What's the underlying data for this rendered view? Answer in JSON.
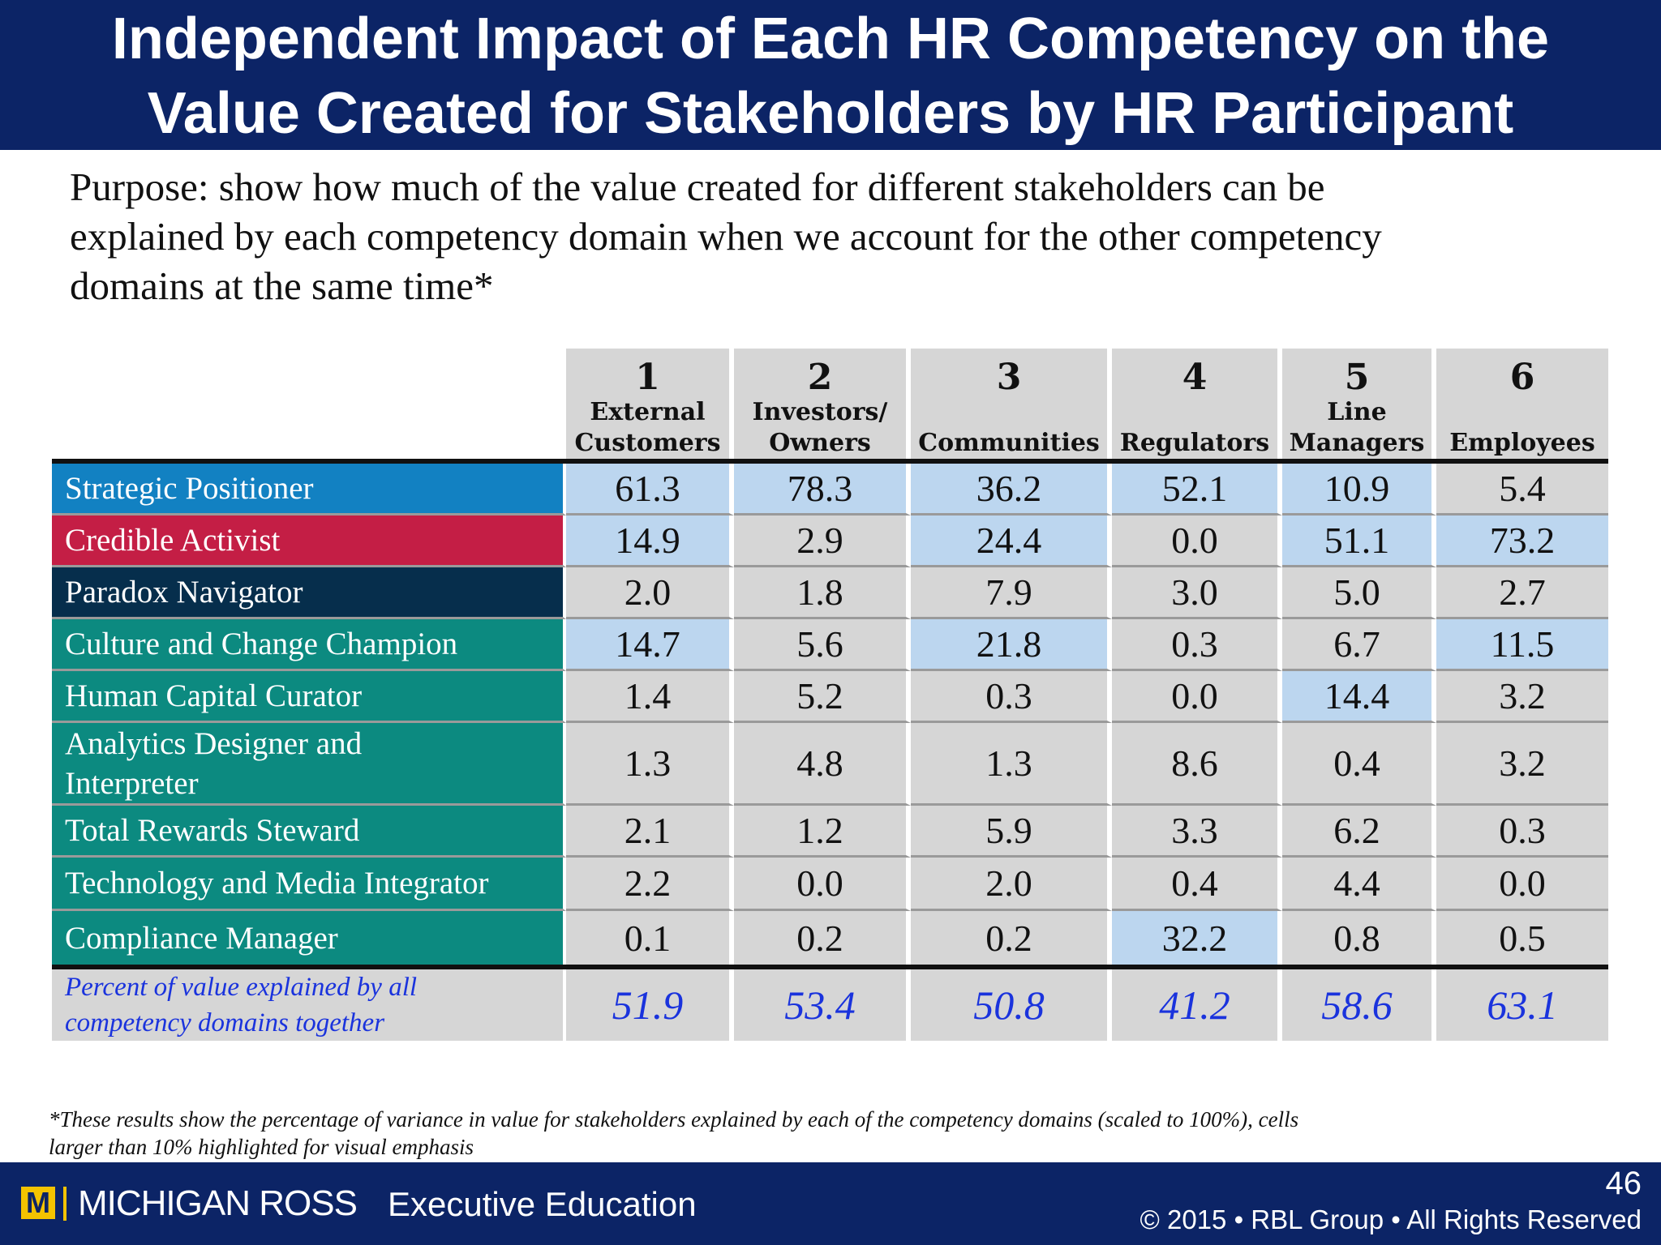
{
  "title": {
    "line1": "Independent Impact of Each HR Competency on the",
    "line2": "Value Created for Stakeholders by HR Participant"
  },
  "purpose": {
    "line1": "Purpose: show how much of the value created for different stakeholders can be",
    "line2": "explained by each competency domain when we account for the other competency",
    "line3": "domains at the same time*"
  },
  "table": {
    "columns": [
      {
        "num": "1",
        "label1": "External",
        "label2": "Customers"
      },
      {
        "num": "2",
        "label1": "Investors/",
        "label2": "Owners"
      },
      {
        "num": "3",
        "label1": "",
        "label2": "Communities"
      },
      {
        "num": "4",
        "label1": "",
        "label2": "Regulators"
      },
      {
        "num": "5",
        "label1": "Line",
        "label2": "Managers"
      },
      {
        "num": "6",
        "label1": "",
        "label2": "Employees"
      }
    ],
    "rows": [
      {
        "label": "Strategic Positioner",
        "values": [
          "61.3",
          "78.3",
          "36.2",
          "52.1",
          "10.9",
          "5.4"
        ],
        "highlight": [
          true,
          true,
          true,
          true,
          true,
          false
        ]
      },
      {
        "label": "Credible Activist",
        "values": [
          "14.9",
          "2.9",
          "24.4",
          "0.0",
          "51.1",
          "73.2"
        ],
        "highlight": [
          true,
          false,
          true,
          false,
          true,
          true
        ]
      },
      {
        "label": "Paradox Navigator",
        "values": [
          "2.0",
          "1.8",
          "7.9",
          "3.0",
          "5.0",
          "2.7"
        ],
        "highlight": [
          false,
          false,
          false,
          false,
          false,
          false
        ]
      },
      {
        "label": "Culture and Change Champion",
        "values": [
          "14.7",
          "5.6",
          "21.8",
          "0.3",
          "6.7",
          "11.5"
        ],
        "highlight": [
          true,
          false,
          true,
          false,
          false,
          true
        ]
      },
      {
        "label": "Human Capital Curator",
        "values": [
          "1.4",
          "5.2",
          "0.3",
          "0.0",
          "14.4",
          "3.2"
        ],
        "highlight": [
          false,
          false,
          false,
          false,
          true,
          false
        ]
      },
      {
        "label1": "Analytics Designer and",
        "label2": "Interpreter",
        "values": [
          "1.3",
          "4.8",
          "1.3",
          "8.6",
          "0.4",
          "3.2"
        ],
        "highlight": [
          false,
          false,
          false,
          false,
          false,
          false
        ]
      },
      {
        "label": "Total Rewards Steward",
        "values": [
          "2.1",
          "1.2",
          "5.9",
          "3.3",
          "6.2",
          "0.3"
        ],
        "highlight": [
          false,
          false,
          false,
          false,
          false,
          false
        ]
      },
      {
        "label": "Technology and Media Integrator",
        "values": [
          "2.2",
          "0.0",
          "2.0",
          "0.4",
          "4.4",
          "0.0"
        ],
        "highlight": [
          false,
          false,
          false,
          false,
          false,
          false
        ]
      },
      {
        "label": "Compliance Manager",
        "values": [
          "0.1",
          "0.2",
          "0.2",
          "32.2",
          "0.8",
          "0.5"
        ],
        "highlight": [
          false,
          false,
          false,
          true,
          false,
          false
        ]
      }
    ],
    "total": {
      "label1": "Percent of value explained by all",
      "label2": "competency domains together",
      "values": [
        "51.9",
        "53.4",
        "50.8",
        "41.2",
        "58.6",
        "63.1"
      ]
    }
  },
  "footnote": {
    "line1": "*These results show the percentage of variance in value for stakeholders explained by each of the competency domains (scaled to 100%), cells",
    "line2": "larger than 10% highlighted for visual emphasis"
  },
  "footer": {
    "logo_letter": "M",
    "logo_text": "MICHIGAN ROSS",
    "exec": "Executive Education",
    "page": "46",
    "copyright": "© 2015 • RBL Group • All Rights Reserved"
  },
  "colors": {
    "navy": "#0c2466",
    "strategic_blue": "#1281c2",
    "activist_red": "#c41e45",
    "paradox_navy": "#062e4c",
    "teal": "#0c8a80",
    "highlight": "#bcd6ef",
    "cell_gray": "#d6d6d6",
    "total_blue": "#1a33dd",
    "maize": "#f4c300"
  }
}
